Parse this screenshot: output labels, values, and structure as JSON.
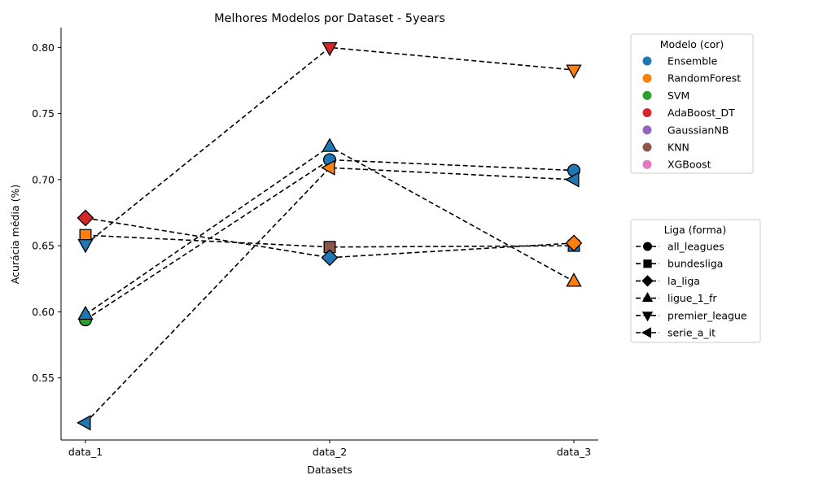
{
  "chart_data": {
    "type": "line",
    "title": "Melhores Modelos por Dataset - 5years",
    "xlabel": "Datasets",
    "ylabel": "Acurácia média (%)",
    "categories": [
      "data_1",
      "data_2",
      "data_3"
    ],
    "ylim": [
      0.503,
      0.815
    ],
    "yticks": [
      0.55,
      0.6,
      0.65,
      0.7,
      0.75,
      0.8
    ],
    "ytick_labels": [
      "0.55",
      "0.60",
      "0.65",
      "0.70",
      "0.75",
      "0.80"
    ],
    "grid": false,
    "colors": {
      "Ensemble": "#1f77b4",
      "RandomForest": "#ff7f0e",
      "SVM": "#2ca02c",
      "AdaBoost_DT": "#d62728",
      "GaussianNB": "#9467bd",
      "KNN": "#8c564b",
      "XGBoost": "#e377c2"
    },
    "series": [
      {
        "name": "all_leagues",
        "marker": "circle",
        "values": [
          0.594,
          0.715,
          0.707
        ],
        "models": [
          "SVM",
          "Ensemble",
          "Ensemble"
        ]
      },
      {
        "name": "bundesliga",
        "marker": "square",
        "values": [
          0.658,
          0.649,
          0.65
        ],
        "models": [
          "RandomForest",
          "KNN",
          "Ensemble"
        ]
      },
      {
        "name": "la_liga",
        "marker": "diamond",
        "values": [
          0.671,
          0.641,
          0.652
        ],
        "models": [
          "AdaBoost_DT",
          "Ensemble",
          "RandomForest"
        ]
      },
      {
        "name": "ligue_1_fr",
        "marker": "triangle-up",
        "values": [
          0.598,
          0.725,
          0.623
        ],
        "models": [
          "Ensemble",
          "Ensemble",
          "RandomForest"
        ]
      },
      {
        "name": "premier_league",
        "marker": "triangle-down",
        "values": [
          0.651,
          0.8,
          0.783
        ],
        "models": [
          "Ensemble",
          "AdaBoost_DT",
          "RandomForest"
        ]
      },
      {
        "name": "serie_a_it",
        "marker": "triangle-left",
        "values": [
          0.516,
          0.709,
          0.7
        ],
        "models": [
          "Ensemble",
          "RandomForest",
          "Ensemble"
        ]
      }
    ],
    "legend_models": {
      "title": "Modelo (cor)",
      "placement": "upper-right-outside",
      "entries": [
        "Ensemble",
        "RandomForest",
        "SVM",
        "AdaBoost_DT",
        "GaussianNB",
        "KNN",
        "XGBoost"
      ]
    },
    "legend_leagues": {
      "title": "Liga (forma)",
      "placement": "right-outside",
      "entries": [
        "all_leagues",
        "bundesliga",
        "la_liga",
        "ligue_1_fr",
        "premier_league",
        "serie_a_it"
      ]
    }
  }
}
